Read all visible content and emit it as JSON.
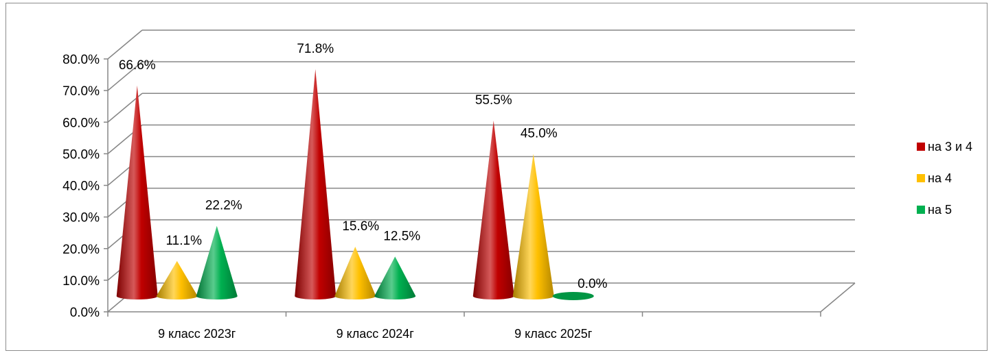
{
  "chart_data": {
    "type": "bar",
    "subtype": "3d-cone",
    "categories": [
      "9 класс 2023г",
      "9 класс 2024г",
      "9 класс 2025г"
    ],
    "series": [
      {
        "name": "на 3 и 4",
        "values": [
          66.6,
          71.8,
          55.5
        ],
        "labels": [
          "66.6%",
          "71.8%",
          "55.5%"
        ],
        "color": "#C00000"
      },
      {
        "name": "на 4",
        "values": [
          11.1,
          15.6,
          45.0
        ],
        "labels": [
          "11.1%",
          "15.6%",
          "45.0%"
        ],
        "color": "#FFC000"
      },
      {
        "name": "на 5",
        "values": [
          22.2,
          12.5,
          0.0
        ],
        "labels": [
          "22.2%",
          "12.5%",
          "0.0%"
        ],
        "color": "#00B050"
      }
    ],
    "y_ticks": [
      "0.0%",
      "10.0%",
      "20.0%",
      "30.0%",
      "40.0%",
      "50.0%",
      "60.0%",
      "70.0%",
      "80.0%"
    ],
    "ylim": [
      0,
      80
    ],
    "grid": true,
    "legend": "right"
  }
}
